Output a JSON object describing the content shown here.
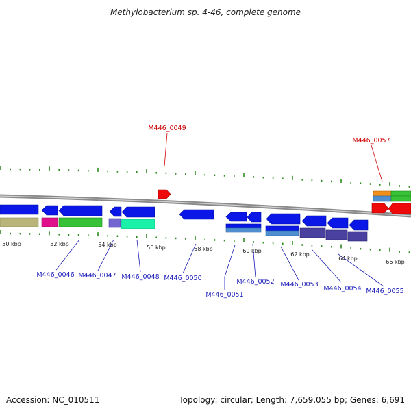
{
  "title": "Methylobacterium sp. 4-46, complete genome",
  "colors": {
    "background": "#ffffff",
    "backbone": "#8a8a8a",
    "tick": "#2e8b22",
    "gene_blue": "#0a17e6",
    "gene_red": "#ee0a0a",
    "label_blue": "#1a1ab8",
    "label_red": "#cc0000"
  },
  "kbp_labels": [
    "50 kbp",
    "52 kbp",
    "54 kbp",
    "56 kbp",
    "58 kbp",
    "60 kbp",
    "62 kbp",
    "64 kbp",
    "66 kbp"
  ],
  "callouts": [
    {
      "label": "M446_0046",
      "color": "blue"
    },
    {
      "label": "M446_0047",
      "color": "blue"
    },
    {
      "label": "M446_0048",
      "color": "blue"
    },
    {
      "label": "M446_0049",
      "color": "red"
    },
    {
      "label": "M446_0050",
      "color": "blue"
    },
    {
      "label": "M446_0051",
      "color": "blue"
    },
    {
      "label": "M446_0052",
      "color": "blue"
    },
    {
      "label": "M446_0053",
      "color": "blue"
    },
    {
      "label": "M446_0054",
      "color": "blue"
    },
    {
      "label": "M446_0055",
      "color": "blue"
    },
    {
      "label": "M446_0057",
      "color": "red"
    }
  ],
  "footer": {
    "accession": "Accession: NC_010511",
    "stats": "Topology: circular; Length: 7,659,055 bp; Genes: 6,691"
  }
}
